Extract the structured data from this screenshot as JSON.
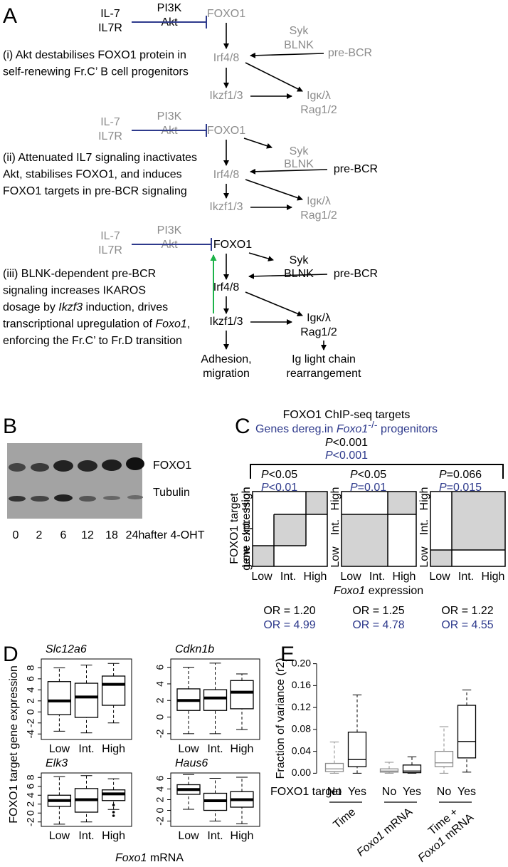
{
  "panel_a": {
    "label": "A",
    "diagram_1": {
      "il7": "IL-7",
      "il7r": "IL7R",
      "pi3k": "PI3K",
      "akt": "Akt",
      "foxo1": "FOXO1",
      "syk": "Syk",
      "blnk": "BLNK",
      "pre_bcr": "pre-BCR",
      "irf": "Irf4/8",
      "ikzf": "Ikzf1/3",
      "igk": "Igκ/λ",
      "rag": "Rag1/2",
      "text": [
        [
          "(i) Akt destabilises FOXO1 protein in"
        ],
        [
          "self-renewing Fr.C’ B cell progenitors"
        ]
      ]
    },
    "diagram_2": {
      "il7": "IL-7",
      "il7r": "IL7R",
      "pi3k": "PI3K",
      "akt": "Akt",
      "foxo1": "FOXO1",
      "syk": "Syk",
      "blnk": "BLNK",
      "pre_bcr": "pre-BCR",
      "irf": "Irf4/8",
      "ikzf": "Ikzf1/3",
      "igk": "Igκ/λ",
      "rag": "Rag1/2",
      "text": [
        [
          "(ii) Attenuated IL7 signaling inactivates"
        ],
        [
          "Akt, stabilises FOXO1, and induces"
        ],
        [
          "FOXO1 targets in pre-BCR signaling"
        ]
      ]
    },
    "diagram_3": {
      "il7": "IL-7",
      "il7r": "IL7R",
      "pi3k": "PI3K",
      "akt": "Akt",
      "foxo1": "FOXO1",
      "syk": "Syk",
      "blnk": "BLNK",
      "pre_bcr": "pre-BCR",
      "irf": "Irf4/8",
      "ikzf": "Ikzf1/3",
      "igk": "Igκ/λ",
      "rag": "Rag1/2",
      "adhesion": "Adhesion,",
      "migration": "migration",
      "ig": "Ig light chain",
      "rearrangement": "rearrangement",
      "text": [
        [
          "(iii) BLNK-dependent pre-BCR"
        ],
        [
          "signaling increases IKAROS"
        ],
        [
          "dosage by ",
          "Ikzf3",
          " induction, drives"
        ],
        [
          "transcriptional upregulation of ",
          "Foxo1",
          ","
        ],
        [
          "enforcing the Fr.C’ to Fr.D transition"
        ]
      ]
    }
  },
  "panel_b": {
    "label": "B",
    "band_1": "FOXO1",
    "band_2": "Tubulin",
    "lanes": [
      "0",
      "2",
      "6",
      "12",
      "18",
      "24h"
    ],
    "lane_note": "after 4-OHT"
  },
  "panel_c": {
    "label": "C",
    "title": "FOXO1 ChIP-seq targets",
    "subtitle": [
      "Genes dereg.in ",
      "Foxo1",
      "-/-",
      " progenitors"
    ],
    "overall": [
      [
        "P",
        "<0.001"
      ],
      [
        "P",
        "<0.001"
      ]
    ],
    "grids": [
      {
        "p": [
          [
            "P",
            "<0.05"
          ],
          [
            "P",
            "<0.01"
          ]
        ],
        "or": [
          "OR = 1.20",
          "OR = 4.99"
        ]
      },
      {
        "p": [
          [
            "P",
            "<0.05"
          ],
          [
            "P",
            "=0.01"
          ]
        ],
        "or": [
          "OR = 1.25",
          "OR = 4.78"
        ]
      },
      {
        "p": [
          [
            "P",
            "=0.066"
          ],
          [
            "P",
            "=0.015"
          ]
        ],
        "or": [
          "OR = 1.22",
          "OR = 4.55"
        ]
      }
    ],
    "levels": [
      "Low",
      "Int.",
      "High"
    ],
    "ylabel": [
      "FOXO1 target",
      "gene expression"
    ],
    "xlabel": [
      "Foxo1",
      " expression"
    ]
  },
  "panel_d": {
    "label": "D",
    "ylabel": "FOXO1 target gene expression",
    "xlabel": [
      "Foxo1",
      " mRNA"
    ]
  },
  "panel_e": {
    "label": "E",
    "groups": [
      [
        [
          "Time"
        ]
      ],
      [
        [
          "Foxo1",
          " mRNA"
        ]
      ],
      [
        [
          "Time +"
        ],
        [
          "Foxo1",
          " mRNA"
        ]
      ]
    ]
  },
  "chart_data": [
    {
      "type": "box",
      "title": "Slc12a6",
      "categories": [
        "Low",
        "Int.",
        "High"
      ],
      "min": [
        -3.5,
        -3.8,
        -2
      ],
      "q1": [
        -0.5,
        -1,
        1.2
      ],
      "median": [
        2,
        2.7,
        5
      ],
      "q3": [
        5.5,
        5.2,
        6.5
      ],
      "max": [
        8,
        8.5,
        8.8
      ],
      "ylim": [
        -5,
        9.6
      ],
      "yticks": [
        -4,
        -2,
        0,
        2,
        4,
        6,
        8
      ],
      "color": "#000000"
    },
    {
      "type": "box",
      "title": "Cdkn1b",
      "categories": [
        "Low",
        "Int.",
        "High"
      ],
      "min": [
        -2,
        -2,
        -1.5
      ],
      "q1": [
        0.8,
        0.8,
        1.0
      ],
      "median": [
        2.0,
        2.3,
        3.0
      ],
      "q3": [
        3.4,
        3.3,
        4.4
      ],
      "max": [
        6,
        6.5,
        5.2
      ],
      "ylim": [
        -2.7,
        7
      ],
      "yticks": [
        -2,
        0,
        2,
        4,
        6
      ],
      "color": "#000000"
    },
    {
      "type": "box",
      "title": "Elk3",
      "categories": [
        "Low",
        "Int.",
        "High"
      ],
      "min": [
        -2.5,
        -2,
        0.8
      ],
      "q1": [
        1.5,
        0.2,
        2.8
      ],
      "median": [
        2.8,
        3.0,
        4.3
      ],
      "q3": [
        4.0,
        5.5,
        5.2
      ],
      "max": [
        8.2,
        8.4,
        7.7
      ],
      "outliers": [
        [],
        [],
        [
          1.8,
          0.2,
          -0.6
        ]
      ],
      "ylim": [
        -3,
        9
      ],
      "yticks": [
        -2,
        0,
        2,
        4,
        6,
        8
      ],
      "color": "#000000"
    },
    {
      "type": "box",
      "title": "Haus6",
      "categories": [
        "Low",
        "Int.",
        "High"
      ],
      "min": [
        0.2,
        -2,
        -2.5
      ],
      "q1": [
        3.0,
        0,
        0.6
      ],
      "median": [
        3.9,
        1.8,
        2.0
      ],
      "q3": [
        4.8,
        3.2,
        3.5
      ],
      "max": [
        6.7,
        6.0,
        6.2
      ],
      "ylim": [
        -3,
        7
      ],
      "yticks": [
        -2,
        0,
        2,
        4,
        6
      ],
      "color": "#000000"
    },
    {
      "type": "box",
      "ylabel": "Fraction of variance (r2)",
      "xlabel": "FOXO1 target",
      "categories": [
        "No",
        "Yes",
        "No",
        "Yes",
        "No",
        "Yes"
      ],
      "colors": [
        "#8c8c8c",
        "#000000",
        "#8c8c8c",
        "#000000",
        "#8c8c8c",
        "#000000"
      ],
      "min": [
        0,
        0,
        0,
        0,
        0,
        0.002
      ],
      "q1": [
        0.003,
        0.012,
        0.002,
        0.001,
        0.012,
        0.028
      ],
      "median": [
        0.008,
        0.025,
        0.004,
        0.004,
        0.019,
        0.058
      ],
      "q3": [
        0.018,
        0.075,
        0.008,
        0.015,
        0.04,
        0.124
      ],
      "max": [
        0.057,
        0.143,
        0.02,
        0.03,
        0.085,
        0.152
      ],
      "ylim": [
        -0.006,
        0.206
      ],
      "yticks": [
        {
          "value": 0,
          "label": "0.00"
        },
        {
          "value": 0.04,
          "label": "0.04"
        },
        {
          "value": 0.08,
          "label": "0.08"
        },
        {
          "value": 0.12,
          "label": "0.12"
        },
        {
          "value": 0.16,
          "label": "0.16"
        },
        {
          "value": 0.2,
          "label": "0.20"
        }
      ]
    }
  ]
}
